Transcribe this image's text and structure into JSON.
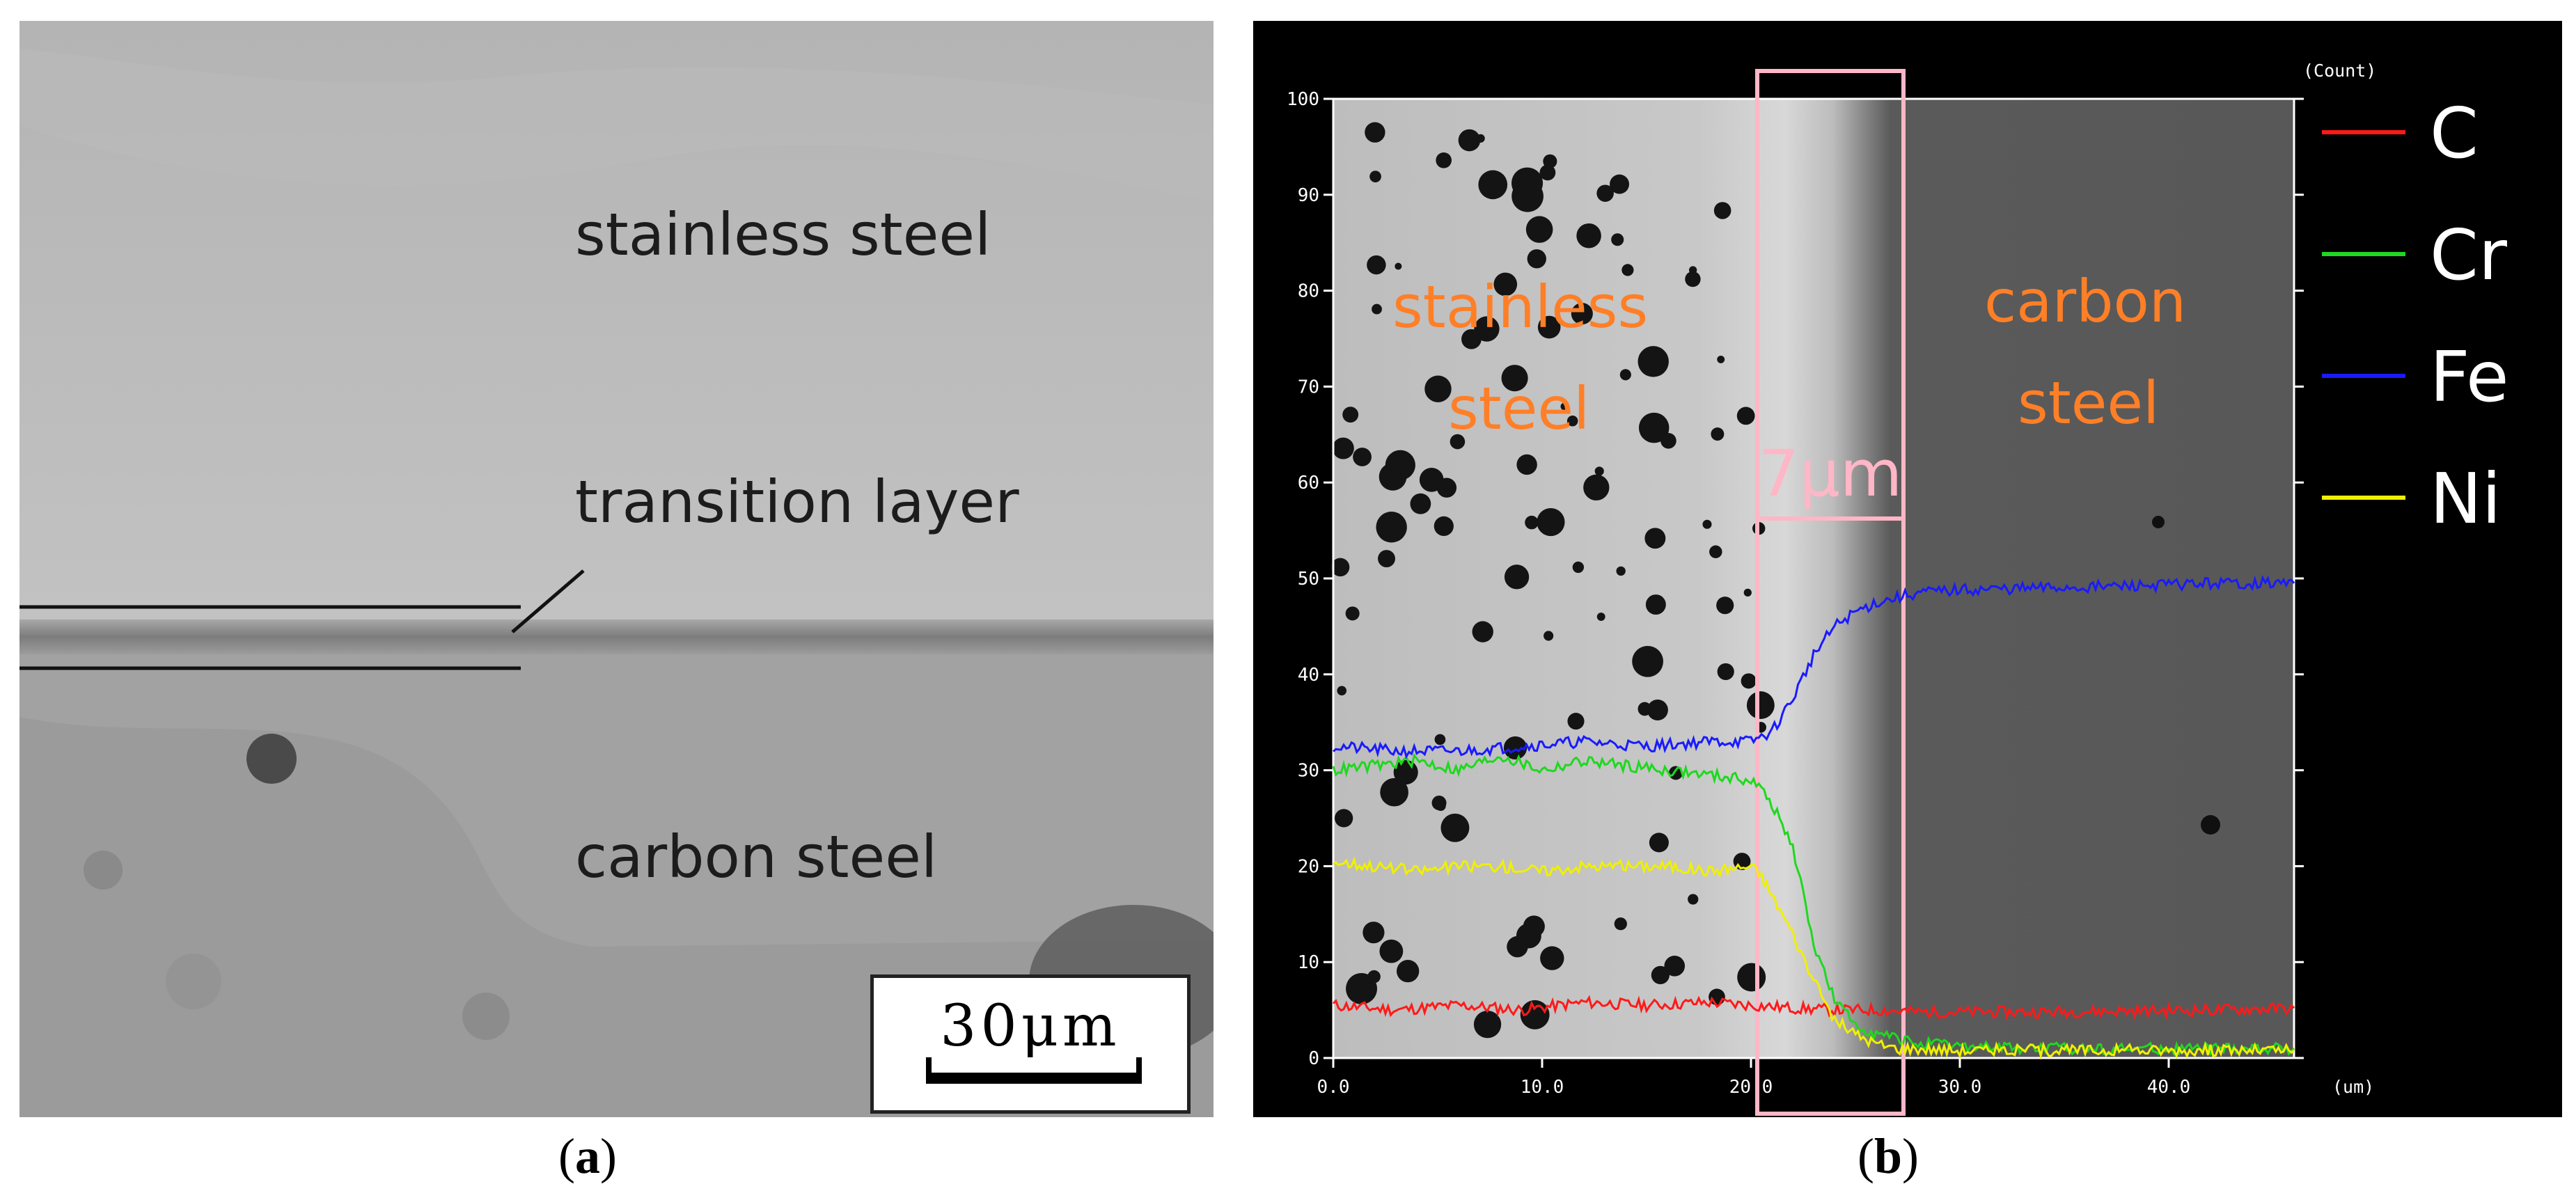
{
  "panel_a": {
    "labels": {
      "stainless": "stainless steel",
      "transition": "transition layer",
      "carbon": "carbon steel"
    },
    "scale_bar": "30μm",
    "caption": {
      "open": "(",
      "letter": "a",
      "close": ")"
    }
  },
  "panel_b": {
    "caption": {
      "open": "(",
      "letter": "b",
      "close": ")"
    },
    "region_labels": {
      "stainless_line1": "stainless",
      "stainless_line2": "steel",
      "carbon_line1": "carbon",
      "carbon_line2": "steel"
    },
    "transition_width": "7μm",
    "colors": {
      "C": "#ff1a1a",
      "Cr": "#1fd81f",
      "Fe": "#1a1aff",
      "Ni": "#f0f000",
      "box": "#ffb6c6",
      "label": "#ff7f27"
    }
  },
  "chart_data": {
    "type": "line",
    "xlabel": "(um)",
    "ylabel": "(Count)",
    "xlim": [
      0,
      46
    ],
    "ylim": [
      0,
      100
    ],
    "x_ticks": [
      "0.0",
      "10.0",
      "20.0",
      "30.0",
      "40.0"
    ],
    "y_ticks": [
      "0",
      "10",
      "20",
      "30",
      "40",
      "50",
      "60",
      "70",
      "80",
      "90",
      "100"
    ],
    "highlight_region": [
      20.3,
      27.3
    ],
    "series": [
      {
        "name": "C",
        "color": "#ff1a1a",
        "x": [
          0,
          3,
          6,
          9,
          12,
          15,
          18,
          20,
          22,
          24,
          26,
          28,
          30,
          34,
          38,
          42,
          46
        ],
        "y": [
          5.5,
          5,
          5.5,
          5,
          5.8,
          5.5,
          5.8,
          5.5,
          5.2,
          5,
          5,
          4.8,
          4.8,
          4.8,
          4.9,
          5,
          5.2
        ]
      },
      {
        "name": "Cr",
        "color": "#1fd81f",
        "x": [
          0,
          2,
          4,
          6,
          8,
          10,
          12,
          14,
          16,
          18,
          20,
          20.5,
          21,
          22,
          23,
          24,
          25,
          26,
          27,
          28,
          30,
          34,
          38,
          42,
          46
        ],
        "y": [
          30,
          30.5,
          31,
          30,
          31.5,
          30,
          31,
          30.5,
          30,
          29.5,
          29,
          28,
          26.5,
          22,
          12,
          6,
          3.5,
          2.5,
          2,
          1.5,
          1.2,
          1,
          1,
          1,
          1
        ]
      },
      {
        "name": "Fe",
        "color": "#1a1aff",
        "x": [
          0,
          3,
          6,
          9,
          12,
          15,
          18,
          20,
          21,
          22,
          23,
          24,
          25,
          26,
          27,
          28,
          30,
          34,
          38,
          42,
          46
        ],
        "y": [
          32.5,
          32,
          32,
          32.5,
          33,
          32.5,
          33,
          33,
          34,
          37.5,
          42,
          45,
          46.5,
          47.5,
          48,
          48.5,
          48.8,
          49,
          49.2,
          49.5,
          49.5
        ]
      },
      {
        "name": "Ni",
        "color": "#f0f000",
        "x": [
          0,
          2,
          4,
          6,
          8,
          10,
          12,
          14,
          16,
          18,
          20,
          20.5,
          21,
          22,
          23,
          24,
          25,
          26,
          27,
          28,
          30,
          34,
          38,
          42,
          46
        ],
        "y": [
          20.5,
          20,
          19.5,
          20,
          20,
          19.5,
          20,
          20,
          20,
          19.5,
          20,
          19,
          17,
          13,
          8,
          4,
          2.5,
          1.5,
          1,
          1,
          0.8,
          0.8,
          0.8,
          0.8,
          0.8
        ]
      }
    ]
  }
}
